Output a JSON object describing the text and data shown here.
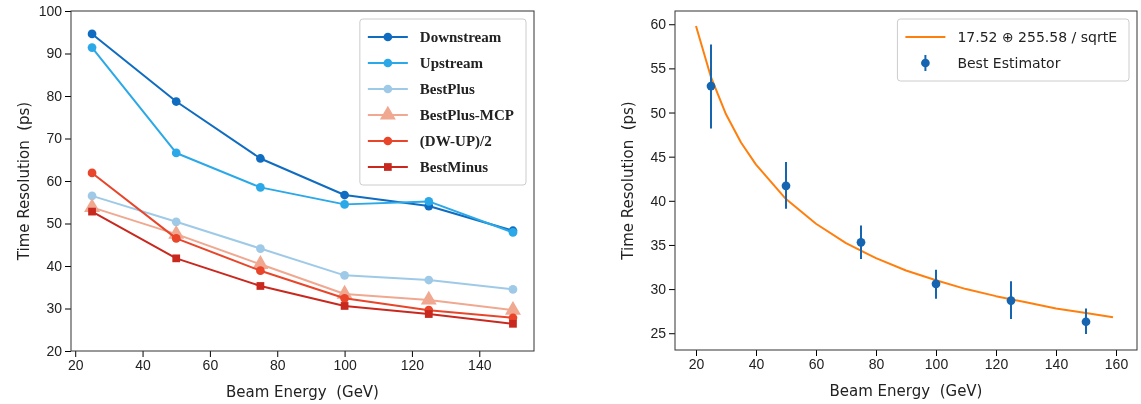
{
  "chart_data": [
    {
      "type": "line",
      "xlabel": "Beam Energy  (GeV)",
      "ylabel": "Time Resolution  (ps)",
      "x": [
        25,
        50,
        75,
        100,
        125,
        150
      ],
      "xlim": [
        18.75,
        156.25
      ],
      "ylim": [
        20,
        100
      ],
      "xticks": [
        20,
        40,
        60,
        80,
        100,
        120,
        140
      ],
      "yticks": [
        20,
        30,
        40,
        50,
        60,
        70,
        80,
        90,
        100
      ],
      "legend": "top right",
      "grid": false,
      "series": [
        {
          "name": "Downstream",
          "color": "#0f6cc0",
          "marker": "circle",
          "values": [
            94.6,
            78.7,
            65.3,
            56.7,
            54.1,
            48.3
          ]
        },
        {
          "name": "Upstream",
          "color": "#2aa8e8",
          "marker": "circle",
          "values": [
            91.4,
            66.6,
            58.5,
            54.5,
            55.2,
            47.9
          ]
        },
        {
          "name": "BestPlus",
          "color": "#9ecae8",
          "marker": "circle",
          "values": [
            56.5,
            50.4,
            44.1,
            37.8,
            36.7,
            34.5
          ]
        },
        {
          "name": "BestPlus-MCP",
          "color": "#f0a890",
          "marker": "triangle",
          "values": [
            53.8,
            47.5,
            40.4,
            33.4,
            32.0,
            29.6
          ]
        },
        {
          "name": "(DW-UP)/2",
          "color": "#e8452a",
          "marker": "circle",
          "values": [
            61.9,
            46.5,
            38.9,
            32.4,
            29.6,
            27.8
          ]
        },
        {
          "name": "BestMinus",
          "color": "#c8281e",
          "marker": "square",
          "values": [
            52.8,
            41.8,
            35.3,
            30.6,
            28.7,
            26.4
          ]
        }
      ]
    },
    {
      "type": "scatter",
      "xlabel": "Beam Energy  (GeV)",
      "ylabel": "Time Resolution  (ps)",
      "xlim": [
        13,
        167
      ],
      "ylim": [
        23.1,
        61.5
      ],
      "xticks": [
        20,
        40,
        60,
        80,
        100,
        120,
        140,
        160
      ],
      "yticks": [
        25,
        30,
        35,
        40,
        45,
        50,
        55,
        60
      ],
      "legend": "top right",
      "grid": false,
      "series": [
        {
          "name": "17.52 ⊕ 255.58 / sqrtE",
          "type": "line",
          "color": "#ff7f0e",
          "marker": "none",
          "x": [
            20,
            25,
            30,
            35,
            40,
            50,
            60,
            70,
            80,
            90,
            100,
            110,
            120,
            130,
            140,
            150,
            159
          ],
          "values": [
            59.8,
            54.0,
            49.8,
            46.6,
            44.1,
            40.2,
            37.4,
            35.2,
            33.5,
            32.1,
            31.0,
            30.0,
            29.2,
            28.5,
            27.8,
            27.3,
            26.8
          ]
        },
        {
          "name": "Best Estimator",
          "color": "#1565b0",
          "marker": "circle",
          "x": [
            25,
            50,
            75,
            100,
            125,
            150
          ],
          "values": [
            53.0,
            41.7,
            35.3,
            30.6,
            28.7,
            26.3
          ],
          "errors": [
            [
              48.2,
              57.7
            ],
            [
              39.1,
              44.4
            ],
            [
              33.4,
              37.2
            ],
            [
              28.9,
              32.2
            ],
            [
              26.6,
              30.9
            ],
            [
              24.9,
              27.8
            ]
          ]
        }
      ]
    }
  ]
}
